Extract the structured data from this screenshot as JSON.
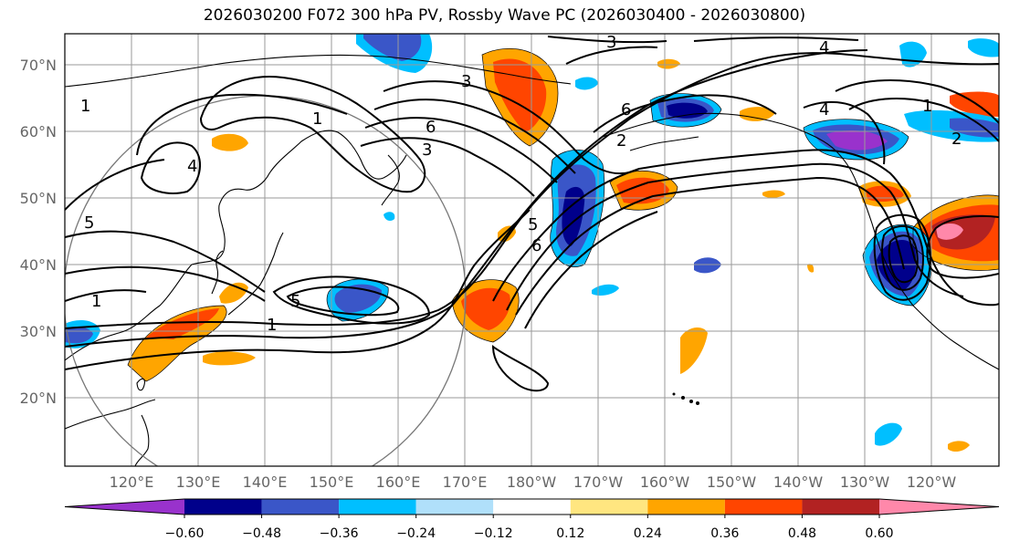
{
  "title": "2026030200 F072 300 hPa PV, Rossby Wave PC (2026030400 - 2026030800)",
  "lat_labels": [
    "70°N",
    "60°N",
    "50°N",
    "40°N",
    "30°N",
    "20°N"
  ],
  "lon_labels": [
    "120°E",
    "130°E",
    "140°E",
    "150°E",
    "160°E",
    "170°E",
    "180°W",
    "170°W",
    "160°W",
    "150°W",
    "140°W",
    "130°W",
    "120°W"
  ],
  "colorbar": {
    "ticks": [
      "−0.60",
      "−0.48",
      "−0.36",
      "−0.24",
      "−0.12",
      "0.12",
      "0.24",
      "0.36",
      "0.48",
      "0.60"
    ],
    "colors": [
      "#9932cc",
      "#00008b",
      "#3a56c8",
      "#00bfff",
      "#b0e0fa",
      "#ffffff",
      "#ffe680",
      "#ffa500",
      "#ff4500",
      "#b22222",
      "#ff88aa"
    ]
  },
  "contour_labels": [
    "1",
    "1",
    "1",
    "1",
    "2",
    "3",
    "3",
    "4",
    "4",
    "4",
    "5",
    "5",
    "5",
    "6",
    "6",
    "6",
    "3",
    "2",
    "1"
  ],
  "chart_data": {
    "type": "map",
    "title": "2026030200 F072 300 hPa PV, Rossby Wave PC (2026030400 - 2026030800)",
    "lat_range": [
      10,
      75
    ],
    "lon_range": [
      110,
      250
    ],
    "filled_field": "Rossby Wave PC",
    "contour_field": "300 hPa PV",
    "contour_levels": [
      1,
      2,
      3,
      4,
      5,
      6
    ]
  }
}
